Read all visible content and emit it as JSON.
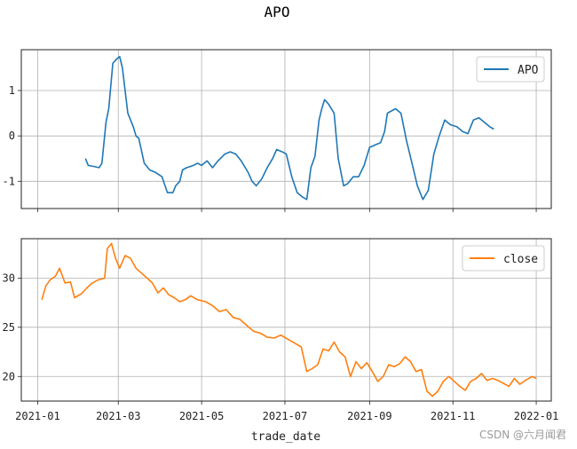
{
  "chart_data": {
    "type": "line",
    "title": "APO",
    "xlabel": "trade_date",
    "x_ticks": [
      "2021-01",
      "2021-03",
      "2021-05",
      "2021-07",
      "2021-09",
      "2021-11",
      "2022-01"
    ],
    "grid": true,
    "panels": [
      {
        "series": [
          {
            "name": "APO",
            "color": "#1f77b4",
            "points": [
              [
                "2021-02-05",
                -0.5
              ],
              [
                "2021-02-07",
                -0.65
              ],
              [
                "2021-02-12",
                -0.68
              ],
              [
                "2021-02-15",
                -0.7
              ],
              [
                "2021-02-17",
                -0.6
              ],
              [
                "2021-02-20",
                0.3
              ],
              [
                "2021-02-22",
                0.6
              ],
              [
                "2021-02-25",
                1.6
              ],
              [
                "2021-02-28",
                1.7
              ],
              [
                "2021-03-02",
                1.75
              ],
              [
                "2021-03-04",
                1.5
              ],
              [
                "2021-03-08",
                0.5
              ],
              [
                "2021-03-12",
                0.2
              ],
              [
                "2021-03-14",
                0.0
              ],
              [
                "2021-03-16",
                -0.05
              ],
              [
                "2021-03-20",
                -0.6
              ],
              [
                "2021-03-24",
                -0.75
              ],
              [
                "2021-03-28",
                -0.8
              ],
              [
                "2021-04-02",
                -0.9
              ],
              [
                "2021-04-06",
                -1.25
              ],
              [
                "2021-04-10",
                -1.25
              ],
              [
                "2021-04-12",
                -1.1
              ],
              [
                "2021-04-15",
                -1.0
              ],
              [
                "2021-04-17",
                -0.75
              ],
              [
                "2021-04-20",
                -0.7
              ],
              [
                "2021-04-25",
                -0.65
              ],
              [
                "2021-04-28",
                -0.6
              ],
              [
                "2021-05-01",
                -0.65
              ],
              [
                "2021-05-05",
                -0.55
              ],
              [
                "2021-05-09",
                -0.7
              ],
              [
                "2021-05-13",
                -0.55
              ],
              [
                "2021-05-18",
                -0.4
              ],
              [
                "2021-05-22",
                -0.35
              ],
              [
                "2021-05-26",
                -0.4
              ],
              [
                "2021-05-30",
                -0.55
              ],
              [
                "2021-06-04",
                -0.8
              ],
              [
                "2021-06-07",
                -1.0
              ],
              [
                "2021-06-10",
                -1.1
              ],
              [
                "2021-06-14",
                -0.95
              ],
              [
                "2021-06-18",
                -0.7
              ],
              [
                "2021-06-22",
                -0.5
              ],
              [
                "2021-06-25",
                -0.3
              ],
              [
                "2021-06-29",
                -0.35
              ],
              [
                "2021-07-02",
                -0.4
              ],
              [
                "2021-07-06",
                -0.9
              ],
              [
                "2021-07-10",
                -1.25
              ],
              [
                "2021-07-14",
                -1.35
              ],
              [
                "2021-07-17",
                -1.4
              ],
              [
                "2021-07-20",
                -0.7
              ],
              [
                "2021-07-23",
                -0.45
              ],
              [
                "2021-07-26",
                0.35
              ],
              [
                "2021-07-28",
                0.6
              ],
              [
                "2021-07-30",
                0.8
              ],
              [
                "2021-08-02",
                0.7
              ],
              [
                "2021-08-06",
                0.5
              ],
              [
                "2021-08-09",
                -0.5
              ],
              [
                "2021-08-13",
                -1.1
              ],
              [
                "2021-08-16",
                -1.05
              ],
              [
                "2021-08-20",
                -0.9
              ],
              [
                "2021-08-24",
                -0.9
              ],
              [
                "2021-08-28",
                -0.65
              ],
              [
                "2021-09-01",
                -0.25
              ],
              [
                "2021-09-05",
                -0.2
              ],
              [
                "2021-09-09",
                -0.15
              ],
              [
                "2021-09-12",
                0.1
              ],
              [
                "2021-09-14",
                0.5
              ],
              [
                "2021-09-17",
                0.55
              ],
              [
                "2021-09-20",
                0.6
              ],
              [
                "2021-09-24",
                0.5
              ],
              [
                "2021-09-28",
                -0.1
              ],
              [
                "2021-10-02",
                -0.6
              ],
              [
                "2021-10-06",
                -1.1
              ],
              [
                "2021-10-10",
                -1.4
              ],
              [
                "2021-10-14",
                -1.2
              ],
              [
                "2021-10-18",
                -0.4
              ],
              [
                "2021-10-22",
                0.0
              ],
              [
                "2021-10-26",
                0.35
              ],
              [
                "2021-10-30",
                0.25
              ],
              [
                "2021-11-04",
                0.2
              ],
              [
                "2021-11-08",
                0.1
              ],
              [
                "2021-11-12",
                0.05
              ],
              [
                "2021-11-16",
                0.35
              ],
              [
                "2021-11-20",
                0.4
              ],
              [
                "2021-11-24",
                0.3
              ],
              [
                "2021-11-28",
                0.2
              ],
              [
                "2021-12-01",
                0.15
              ]
            ]
          }
        ],
        "yticks": [
          "-1",
          "0",
          "1"
        ],
        "ylim": [
          -1.6,
          1.9
        ],
        "legend": "top-right"
      },
      {
        "series": [
          {
            "name": "close",
            "color": "#ff7f0e",
            "points": [
              [
                "2021-01-04",
                27.8
              ],
              [
                "2021-01-07",
                29.2
              ],
              [
                "2021-01-10",
                29.8
              ],
              [
                "2021-01-14",
                30.2
              ],
              [
                "2021-01-17",
                31.0
              ],
              [
                "2021-01-21",
                29.5
              ],
              [
                "2021-01-25",
                29.6
              ],
              [
                "2021-01-28",
                28.0
              ],
              [
                "2021-02-02",
                28.4
              ],
              [
                "2021-02-06",
                29.0
              ],
              [
                "2021-02-10",
                29.5
              ],
              [
                "2021-02-14",
                29.8
              ],
              [
                "2021-02-19",
                30.0
              ],
              [
                "2021-02-21",
                33.0
              ],
              [
                "2021-02-24",
                33.5
              ],
              [
                "2021-02-27",
                32.0
              ],
              [
                "2021-03-02",
                31.0
              ],
              [
                "2021-03-06",
                32.3
              ],
              [
                "2021-03-10",
                32.0
              ],
              [
                "2021-03-14",
                31.0
              ],
              [
                "2021-03-18",
                30.5
              ],
              [
                "2021-03-22",
                30.0
              ],
              [
                "2021-03-26",
                29.5
              ],
              [
                "2021-03-30",
                28.5
              ],
              [
                "2021-04-03",
                29.0
              ],
              [
                "2021-04-07",
                28.3
              ],
              [
                "2021-04-11",
                28.0
              ],
              [
                "2021-04-15",
                27.6
              ],
              [
                "2021-04-19",
                27.8
              ],
              [
                "2021-04-23",
                28.2
              ],
              [
                "2021-04-28",
                27.8
              ],
              [
                "2021-05-04",
                27.6
              ],
              [
                "2021-05-09",
                27.2
              ],
              [
                "2021-05-14",
                26.6
              ],
              [
                "2021-05-19",
                26.8
              ],
              [
                "2021-05-24",
                26.0
              ],
              [
                "2021-05-29",
                25.8
              ],
              [
                "2021-06-03",
                25.2
              ],
              [
                "2021-06-08",
                24.6
              ],
              [
                "2021-06-13",
                24.4
              ],
              [
                "2021-06-18",
                24.0
              ],
              [
                "2021-06-23",
                23.9
              ],
              [
                "2021-06-28",
                24.2
              ],
              [
                "2021-07-03",
                23.8
              ],
              [
                "2021-07-08",
                23.4
              ],
              [
                "2021-07-13",
                23.0
              ],
              [
                "2021-07-17",
                20.5
              ],
              [
                "2021-07-21",
                20.8
              ],
              [
                "2021-07-25",
                21.2
              ],
              [
                "2021-07-29",
                22.8
              ],
              [
                "2021-08-02",
                22.6
              ],
              [
                "2021-08-06",
                23.5
              ],
              [
                "2021-08-10",
                22.5
              ],
              [
                "2021-08-14",
                22.0
              ],
              [
                "2021-08-18",
                20.0
              ],
              [
                "2021-08-22",
                21.5
              ],
              [
                "2021-08-26",
                20.8
              ],
              [
                "2021-08-30",
                21.4
              ],
              [
                "2021-09-03",
                20.5
              ],
              [
                "2021-09-07",
                19.5
              ],
              [
                "2021-09-11",
                20.0
              ],
              [
                "2021-09-15",
                21.2
              ],
              [
                "2021-09-19",
                21.0
              ],
              [
                "2021-09-23",
                21.3
              ],
              [
                "2021-09-27",
                22.0
              ],
              [
                "2021-10-01",
                21.5
              ],
              [
                "2021-10-05",
                20.5
              ],
              [
                "2021-10-09",
                20.7
              ],
              [
                "2021-10-13",
                18.5
              ],
              [
                "2021-10-17",
                18.0
              ],
              [
                "2021-10-21",
                18.5
              ],
              [
                "2021-10-25",
                19.5
              ],
              [
                "2021-10-29",
                20.0
              ],
              [
                "2021-11-02",
                19.5
              ],
              [
                "2021-11-06",
                19.0
              ],
              [
                "2021-11-10",
                18.6
              ],
              [
                "2021-11-14",
                19.5
              ],
              [
                "2021-11-18",
                19.8
              ],
              [
                "2021-11-22",
                20.3
              ],
              [
                "2021-11-26",
                19.6
              ],
              [
                "2021-11-30",
                19.8
              ],
              [
                "2021-12-04",
                19.6
              ],
              [
                "2021-12-08",
                19.3
              ],
              [
                "2021-12-12",
                19.0
              ],
              [
                "2021-12-16",
                19.8
              ],
              [
                "2021-12-20",
                19.2
              ],
              [
                "2021-12-24",
                19.6
              ],
              [
                "2021-12-29",
                20.0
              ],
              [
                "2022-01-01",
                19.8
              ]
            ]
          }
        ],
        "yticks": [
          "20",
          "25",
          "30"
        ],
        "ylim": [
          17.5,
          34.0
        ],
        "legend": "top-right"
      }
    ]
  },
  "watermark": "CSDN @六月闻君"
}
